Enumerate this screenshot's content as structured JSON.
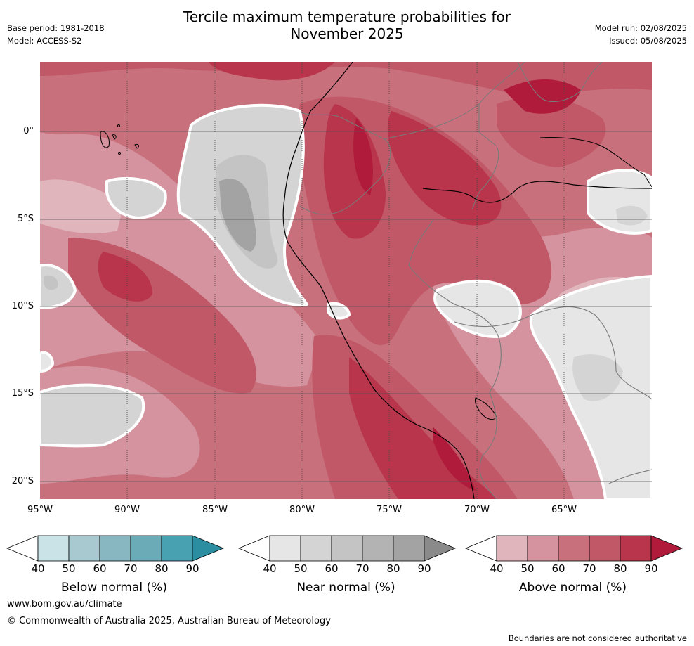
{
  "header": {
    "title_line1": "Tercile maximum temperature probabilities for",
    "title_line2": "November 2025",
    "base_period": "Base period: 1981-2018",
    "model": "Model: ACCESS-S2",
    "model_run": "Model run: 02/08/2025",
    "issued": "Issued: 05/08/2025"
  },
  "map": {
    "lat_labels": [
      "0°",
      "5°S",
      "10°S",
      "15°S",
      "20°S"
    ],
    "lon_labels": [
      "95°W",
      "90°W",
      "85°W",
      "80°W",
      "75°W",
      "70°W",
      "65°W"
    ]
  },
  "colorbars": [
    {
      "title": "Below normal (%)",
      "ticks": [
        "40",
        "50",
        "60",
        "70",
        "80",
        "90"
      ],
      "colors": [
        "#ffffff",
        "#c9e3e7",
        "#a7c9cf",
        "#89b7c1",
        "#6aabb7",
        "#48a1b0",
        "#2b8ea1"
      ]
    },
    {
      "title": "Near normal (%)",
      "ticks": [
        "40",
        "50",
        "60",
        "70",
        "80",
        "90"
      ],
      "colors": [
        "#ffffff",
        "#e6e6e6",
        "#d4d4d4",
        "#c4c4c4",
        "#b3b3b3",
        "#a3a3a3",
        "#8a8a8a"
      ]
    },
    {
      "title": "Above normal (%)",
      "ticks": [
        "40",
        "50",
        "60",
        "70",
        "80",
        "90"
      ],
      "colors": [
        "#ffffff",
        "#e0b5bc",
        "#d4939e",
        "#c9707d",
        "#c15868",
        "#b8354b",
        "#b01b3b"
      ]
    }
  ],
  "footer": {
    "url": "www.bom.gov.au/climate",
    "copyright": "© Commonwealth of Australia 2025, Australian Bureau of Meteorology",
    "disclaimer": "Boundaries are not considered authoritative"
  }
}
